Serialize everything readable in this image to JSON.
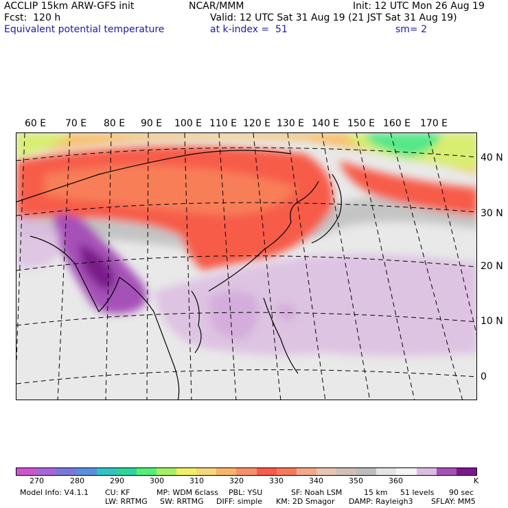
{
  "header": {
    "model": "ACCLIP 15km ARW-GFS init",
    "org": "NCAR/MMM",
    "init": "Init: 12 UTC Mon 26 Aug 19",
    "fcst": "Fcst:  120 h",
    "valid": "Valid: 12 UTC Sat 31 Aug 19 (21 JST Sat 31 Aug 19)",
    "field": "Equivalent potential temperature",
    "level": "at k-index =  51",
    "smooth": "sm= 2"
  },
  "map": {
    "lon_labels": [
      "60 E",
      "70 E",
      "80 E",
      "90 E",
      "100 E",
      "110 E",
      "120 E",
      "130 E",
      "140 E",
      "150 E",
      "160 E",
      "170 E"
    ],
    "lat_labels": [
      "40 N",
      "30 N",
      "20 N",
      "10 N",
      "0"
    ]
  },
  "colorbar": {
    "colors": [
      "#cc55cc",
      "#a865d8",
      "#7a77dc",
      "#5a8ee0",
      "#33c2c2",
      "#2ed59a",
      "#55ee77",
      "#a6f066",
      "#f0f066",
      "#f7d77a",
      "#f8b46a",
      "#f7906a",
      "#f75b4a",
      "#f57a5a",
      "#f4a88a",
      "#e8c4b4",
      "#cfc0b8",
      "#bdbdbd",
      "#e4e4e4",
      "#f4f4f4",
      "#dcbde2",
      "#a651b8",
      "#7a1a8a"
    ],
    "labels": [
      "270",
      "280",
      "290",
      "300",
      "310",
      "320",
      "330",
      "340",
      "350",
      "360"
    ],
    "unit": "K"
  },
  "footer": {
    "line1": [
      "Model Info: V4.1.1",
      "CU: KF",
      "MP: WDM 6class",
      "PBL: YSU",
      "SF: Noah LSM",
      "15 km",
      "51 levels",
      "90 sec"
    ],
    "line2": [
      "LW: RRTMG",
      "SW: RRTMG",
      "DIFF: simple",
      "KM: 2D Smagor",
      "DAMP: Rayleigh3",
      "SFLAY: MM5"
    ]
  }
}
